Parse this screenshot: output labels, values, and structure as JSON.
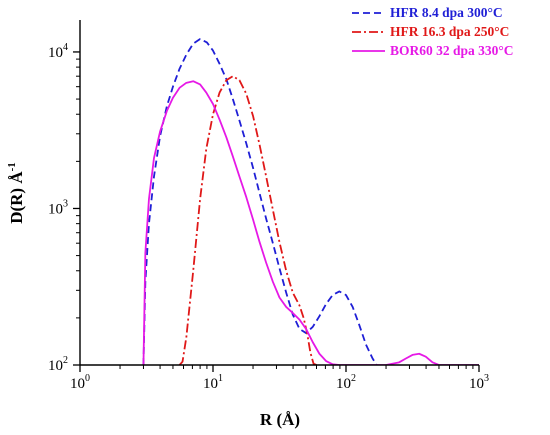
{
  "chart_data": {
    "type": "line",
    "title": "",
    "xlabel": "R  (Å)",
    "ylabel": "D(R) Å",
    "ylabel_sup": "-1",
    "x_scale": "log",
    "y_scale": "log",
    "xlim": [
      1,
      1000
    ],
    "ylim": [
      100,
      16000
    ],
    "grid": false,
    "legend_position": "top-right",
    "x_ticks": [
      {
        "value": 1,
        "base": "10",
        "exp": "0"
      },
      {
        "value": 10,
        "base": "10",
        "exp": "1"
      },
      {
        "value": 100,
        "base": "10",
        "exp": "2"
      },
      {
        "value": 1000,
        "base": "10",
        "exp": "3"
      }
    ],
    "y_ticks": [
      {
        "value": 100,
        "base": "10",
        "exp": "2"
      },
      {
        "value": 1000,
        "base": "10",
        "exp": "3"
      },
      {
        "value": 10000,
        "base": "10",
        "exp": "4"
      }
    ],
    "series": [
      {
        "name": "HFR 8.4 dpa 300°C",
        "color": "#1f1fd6",
        "dash": "dashed",
        "points": [
          [
            3.0,
            100
          ],
          [
            3.1,
            340
          ],
          [
            3.3,
            800
          ],
          [
            3.6,
            1600
          ],
          [
            4.0,
            2900
          ],
          [
            4.5,
            4500
          ],
          [
            5.0,
            6000
          ],
          [
            5.6,
            7800
          ],
          [
            6.3,
            9600
          ],
          [
            7.1,
            11300
          ],
          [
            8.0,
            12100
          ],
          [
            9.0,
            11500
          ],
          [
            10.0,
            10200
          ],
          [
            11.2,
            8400
          ],
          [
            12.6,
            6700
          ],
          [
            14.1,
            5000
          ],
          [
            15.8,
            3650
          ],
          [
            17.8,
            2600
          ],
          [
            20.0,
            1820
          ],
          [
            22.4,
            1250
          ],
          [
            25.1,
            860
          ],
          [
            28.2,
            600
          ],
          [
            31.6,
            415
          ],
          [
            35.5,
            290
          ],
          [
            39.8,
            210
          ],
          [
            44.7,
            170
          ],
          [
            50.1,
            160
          ],
          [
            56.2,
            175
          ],
          [
            63.1,
            205
          ],
          [
            70.8,
            245
          ],
          [
            79.4,
            280
          ],
          [
            89.1,
            295
          ],
          [
            100.0,
            280
          ],
          [
            112.2,
            235
          ],
          [
            125.9,
            180
          ],
          [
            141.3,
            135
          ],
          [
            158.5,
            110
          ],
          [
            170.0,
            100
          ]
        ]
      },
      {
        "name": "HFR 16.3 dpa 250°C",
        "color": "#e01818",
        "dash": "dashdot",
        "points": [
          [
            5.6,
            100
          ],
          [
            5.9,
            105
          ],
          [
            6.3,
            150
          ],
          [
            7.1,
            400
          ],
          [
            8.0,
            1150
          ],
          [
            8.9,
            2400
          ],
          [
            10.0,
            4000
          ],
          [
            11.2,
            5500
          ],
          [
            12.6,
            6600
          ],
          [
            14.1,
            7000
          ],
          [
            15.8,
            6600
          ],
          [
            17.8,
            5400
          ],
          [
            20.0,
            3900
          ],
          [
            22.4,
            2550
          ],
          [
            25.1,
            1600
          ],
          [
            28.2,
            980
          ],
          [
            31.6,
            610
          ],
          [
            35.5,
            400
          ],
          [
            39.8,
            290
          ],
          [
            44.7,
            240
          ],
          [
            48.0,
            200
          ],
          [
            51.0,
            160
          ],
          [
            54.0,
            120
          ],
          [
            57.0,
            102
          ],
          [
            60.0,
            100
          ]
        ]
      },
      {
        "name": "BOR60 32 dpa 330°C",
        "color": "#e619e6",
        "dash": "solid",
        "points": [
          [
            3.0,
            100
          ],
          [
            3.1,
            520
          ],
          [
            3.3,
            1150
          ],
          [
            3.6,
            2100
          ],
          [
            4.0,
            3100
          ],
          [
            4.5,
            4200
          ],
          [
            5.0,
            5100
          ],
          [
            5.6,
            5900
          ],
          [
            6.3,
            6350
          ],
          [
            7.1,
            6500
          ],
          [
            8.0,
            6200
          ],
          [
            8.9,
            5500
          ],
          [
            10.0,
            4650
          ],
          [
            11.2,
            3700
          ],
          [
            12.6,
            2850
          ],
          [
            14.1,
            2150
          ],
          [
            15.8,
            1600
          ],
          [
            17.8,
            1180
          ],
          [
            20.0,
            850
          ],
          [
            22.4,
            610
          ],
          [
            25.1,
            450
          ],
          [
            28.2,
            340
          ],
          [
            31.6,
            270
          ],
          [
            35.5,
            235
          ],
          [
            39.8,
            215
          ],
          [
            44.7,
            195
          ],
          [
            50.1,
            170
          ],
          [
            56.2,
            140
          ],
          [
            63.1,
            118
          ],
          [
            70.8,
            106
          ],
          [
            79.4,
            101
          ],
          [
            89.1,
            100
          ],
          [
            100.0,
            100
          ],
          [
            200.0,
            100
          ],
          [
            251.0,
            104
          ],
          [
            282.0,
            110
          ],
          [
            316.0,
            116
          ],
          [
            355.0,
            118
          ],
          [
            398.0,
            113
          ],
          [
            447.0,
            104
          ],
          [
            500.0,
            100
          ],
          [
            1000.0,
            100
          ]
        ]
      }
    ]
  }
}
